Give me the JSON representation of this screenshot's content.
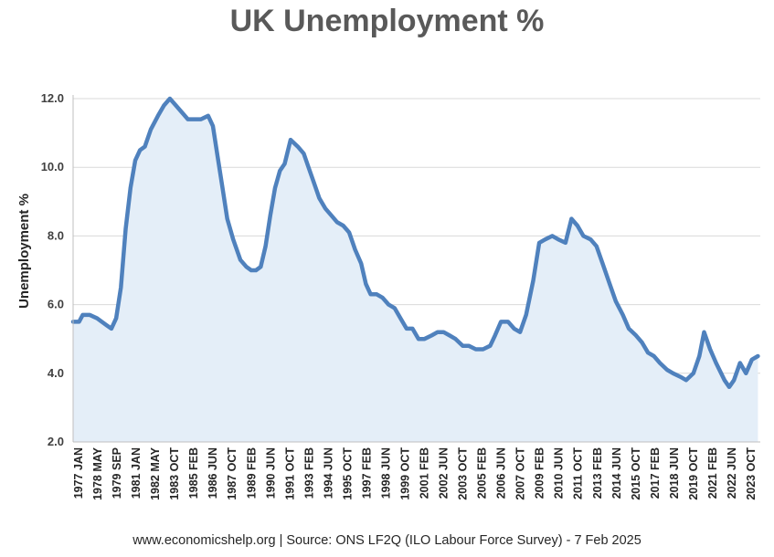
{
  "chart_data": {
    "type": "area",
    "title": "UK Unemployment %",
    "ylabel": "Unemployment %",
    "xlabel": "",
    "ylim": [
      2.0,
      12.0
    ],
    "y_ticks": [
      "2.0",
      "4.0",
      "6.0",
      "8.0",
      "10.0",
      "12.0"
    ],
    "x_tick_labels": [
      "1977 JAN",
      "1978 MAY",
      "1979 SEP",
      "1981 JAN",
      "1982 MAY",
      "1983 OCT",
      "1985 FEB",
      "1986 JUN",
      "1987 OCT",
      "1989 FEB",
      "1990 JUN",
      "1991 OCT",
      "1993 FEB",
      "1994 JUN",
      "1995 OCT",
      "1997 FEB",
      "1998 JUN",
      "1999 OCT",
      "2001 FEB",
      "2002 JUN",
      "2003 OCT",
      "2005 FEB",
      "2006 JUN",
      "2007 OCT",
      "2009 FEB",
      "2010 JUN",
      "2011 OCT",
      "2013 FEB",
      "2014 JUN",
      "2015 OCT",
      "2017 FEB",
      "2018 JUN",
      "2019 OCT",
      "2021 FEB",
      "2022 JUN",
      "2023 OCT"
    ],
    "grid": true,
    "legend": "none",
    "line_color": "#4f81bd",
    "fill_color": "#e4eef8",
    "series": [
      {
        "x": [
          "1977-01",
          "1977-06",
          "1977-09",
          "1978-03",
          "1978-09",
          "1979-05",
          "1979-09",
          "1980-01",
          "1980-05",
          "1980-09",
          "1981-01",
          "1981-05",
          "1981-09",
          "1982-01",
          "1982-06",
          "1982-12",
          "1983-05",
          "1983-10",
          "1984-03",
          "1984-08",
          "1985-01",
          "1985-06",
          "1985-12",
          "1986-06",
          "1986-10",
          "1987-02",
          "1987-06",
          "1987-10",
          "1988-03",
          "1988-09",
          "1989-02",
          "1989-06",
          "1989-10",
          "1990-02",
          "1990-06",
          "1990-10",
          "1991-02",
          "1991-06",
          "1991-10",
          "1992-03",
          "1992-09",
          "1993-02",
          "1993-06",
          "1993-10",
          "1994-03",
          "1994-08",
          "1995-01",
          "1995-06",
          "1995-11",
          "1996-04",
          "1996-09",
          "1997-02",
          "1997-06",
          "1997-10",
          "1998-03",
          "1998-08",
          "1999-01",
          "1999-06",
          "1999-11",
          "2000-04",
          "2000-09",
          "2001-02",
          "2001-07",
          "2002-01",
          "2002-06",
          "2002-11",
          "2003-04",
          "2003-09",
          "2004-03",
          "2004-08",
          "2005-02",
          "2005-08",
          "2006-02",
          "2006-06",
          "2006-11",
          "2007-05",
          "2007-10",
          "2008-03",
          "2008-08",
          "2009-02",
          "2009-07",
          "2009-12",
          "2010-06",
          "2010-11",
          "2011-05",
          "2011-10",
          "2012-03",
          "2012-08",
          "2013-02",
          "2013-07",
          "2013-12",
          "2014-06",
          "2014-11",
          "2015-05",
          "2015-10",
          "2016-04",
          "2016-09",
          "2017-02",
          "2017-07",
          "2017-12",
          "2018-06",
          "2018-11",
          "2019-05",
          "2019-10",
          "2020-04",
          "2020-09",
          "2021-01",
          "2021-06",
          "2021-11",
          "2022-06",
          "2022-10",
          "2023-02",
          "2023-07",
          "2023-12",
          "2024-05",
          "2024-10"
        ],
        "values": [
          5.5,
          5.5,
          5.7,
          5.7,
          5.6,
          5.4,
          5.3,
          5.6,
          6.5,
          8.2,
          9.4,
          10.2,
          10.5,
          10.6,
          11.1,
          11.5,
          11.8,
          12.0,
          11.8,
          11.6,
          11.4,
          11.4,
          11.4,
          11.5,
          11.2,
          10.3,
          9.4,
          8.5,
          7.9,
          7.3,
          7.1,
          7.0,
          7.0,
          7.1,
          7.7,
          8.6,
          9.4,
          9.9,
          10.1,
          10.8,
          10.6,
          10.4,
          10.0,
          9.6,
          9.1,
          8.8,
          8.6,
          8.4,
          8.3,
          8.1,
          7.6,
          7.2,
          6.6,
          6.3,
          6.3,
          6.2,
          6.0,
          5.9,
          5.6,
          5.3,
          5.3,
          5.0,
          5.0,
          5.1,
          5.2,
          5.2,
          5.1,
          5.0,
          4.8,
          4.8,
          4.7,
          4.7,
          4.8,
          5.1,
          5.5,
          5.5,
          5.3,
          5.2,
          5.7,
          6.7,
          7.8,
          7.9,
          8.0,
          7.9,
          7.8,
          8.5,
          8.3,
          8.0,
          7.9,
          7.7,
          7.2,
          6.6,
          6.1,
          5.7,
          5.3,
          5.1,
          4.9,
          4.6,
          4.5,
          4.3,
          4.1,
          4.0,
          3.9,
          3.8,
          4.0,
          4.5,
          5.2,
          4.7,
          4.3,
          3.8,
          3.6,
          3.8,
          4.3,
          4.0,
          4.4,
          4.5
        ]
      }
    ]
  },
  "source_note": "www.economicshelp.org | Source: ONS LF2Q (ILO Labour Force Survey) - 7 Feb 2025"
}
